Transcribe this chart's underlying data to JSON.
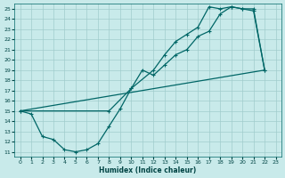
{
  "bg_color": "#c8eaea",
  "grid_color": "#a0cccc",
  "line_color": "#006666",
  "xlabel": "Humidex (Indice chaleur)",
  "xlim": [
    -0.5,
    23.5
  ],
  "ylim": [
    10.5,
    25.5
  ],
  "xticks": [
    0,
    1,
    2,
    3,
    4,
    5,
    6,
    7,
    8,
    9,
    10,
    11,
    12,
    13,
    14,
    15,
    16,
    17,
    18,
    19,
    20,
    21,
    22,
    23
  ],
  "yticks": [
    11,
    12,
    13,
    14,
    15,
    16,
    17,
    18,
    19,
    20,
    21,
    22,
    23,
    24,
    25
  ],
  "series": [
    {
      "x": [
        0,
        1,
        2,
        3,
        4,
        5,
        6,
        7,
        8,
        9,
        10,
        11,
        12,
        13,
        14,
        15,
        16,
        17,
        18,
        19,
        20,
        21,
        22
      ],
      "y": [
        15,
        14.7,
        12.5,
        12.2,
        11.2,
        11.0,
        11.2,
        11.8,
        13.5,
        15.2,
        17.2,
        19.0,
        18.5,
        19.5,
        20.5,
        21.0,
        22.3,
        22.8,
        24.5,
        25.2,
        25.0,
        24.8,
        19.0
      ],
      "marker": true,
      "lw": 0.9
    },
    {
      "x": [
        0,
        8,
        10,
        12,
        13,
        14,
        15,
        16,
        17,
        18,
        19,
        20,
        21,
        22
      ],
      "y": [
        15,
        15.0,
        17.2,
        19.0,
        20.5,
        21.8,
        22.5,
        23.2,
        25.2,
        25.0,
        25.2,
        25.0,
        25.0,
        19.0
      ],
      "marker": true,
      "lw": 0.9
    },
    {
      "x": [
        0,
        22
      ],
      "y": [
        15,
        19.0
      ],
      "marker": false,
      "lw": 0.9
    }
  ]
}
